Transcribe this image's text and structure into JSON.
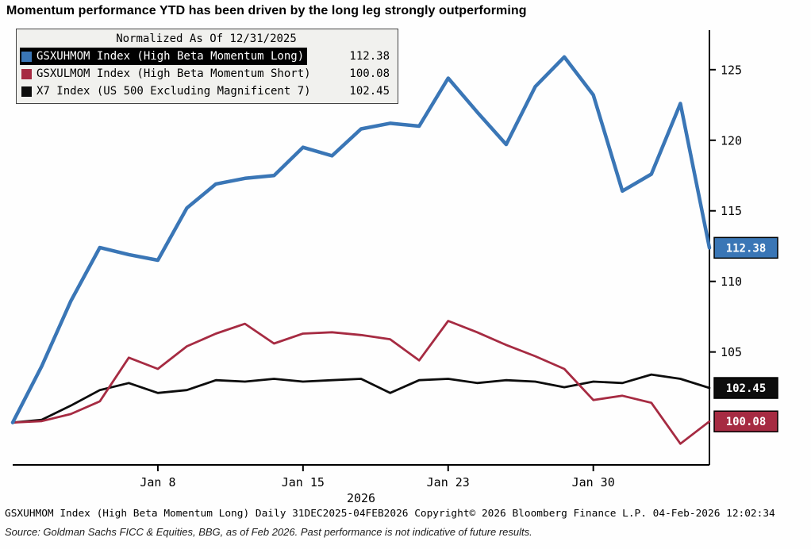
{
  "title": "Momentum performance YTD has been driven by the long leg strongly outperforming",
  "chart_data": {
    "type": "line",
    "legend_title": "Normalized As Of 12/31/2025",
    "x_tick_labels": [
      "Jan 8",
      "Jan 15",
      "Jan 23",
      "Jan 30"
    ],
    "x_tick_indices": [
      5,
      10,
      15,
      20
    ],
    "x_axis_label": "2026",
    "y_ticks": [
      105,
      110,
      115,
      120,
      125
    ],
    "ylim": [
      97,
      127.8
    ],
    "grid": "off",
    "legend_position": "top-left",
    "series": [
      {
        "label": "GSXUHMOM Index (High Beta Momentum Long)",
        "last_value": "112.38",
        "color": "#3a76b6",
        "highlighted": true,
        "values": [
          100.0,
          104.0,
          108.6,
          112.4,
          111.9,
          111.5,
          115.2,
          116.9,
          117.3,
          117.5,
          119.5,
          118.9,
          120.8,
          121.2,
          121.0,
          124.4,
          122.0,
          119.7,
          123.8,
          125.9,
          123.2,
          116.4,
          117.6,
          122.6,
          112.38
        ]
      },
      {
        "label": "GSXULMOM Index (High Beta Momentum Short)",
        "last_value": "100.08",
        "color": "#a62b42",
        "highlighted": false,
        "values": [
          100.0,
          100.1,
          100.6,
          101.5,
          104.6,
          103.8,
          105.4,
          106.3,
          107.0,
          105.6,
          106.3,
          106.4,
          106.2,
          105.9,
          104.4,
          107.2,
          106.4,
          105.5,
          104.7,
          103.8,
          101.6,
          101.9,
          101.4,
          98.5,
          100.08
        ]
      },
      {
        "label": "X7 Index (US 500 Excluding Magnificent 7)",
        "last_value": "102.45",
        "color": "#0d0d0d",
        "highlighted": false,
        "values": [
          100.0,
          100.2,
          101.2,
          102.3,
          102.8,
          102.1,
          102.3,
          103.0,
          102.9,
          103.1,
          102.9,
          103.0,
          103.1,
          102.1,
          103.0,
          103.1,
          102.8,
          103.0,
          102.9,
          102.5,
          102.9,
          102.8,
          103.4,
          103.1,
          102.45
        ]
      }
    ]
  },
  "footer": {
    "line1": "GSXUHMOM Index (High Beta Momentum Long) Daily 31DEC2025-04FEB2026 Copyright© 2026 Bloomberg Finance L.P. 04-Feb-2026 12:02:34",
    "line2": "Source: Goldman Sachs FICC & Equities, BBG, as of Feb 2026. Past performance is not indicative of future results."
  }
}
